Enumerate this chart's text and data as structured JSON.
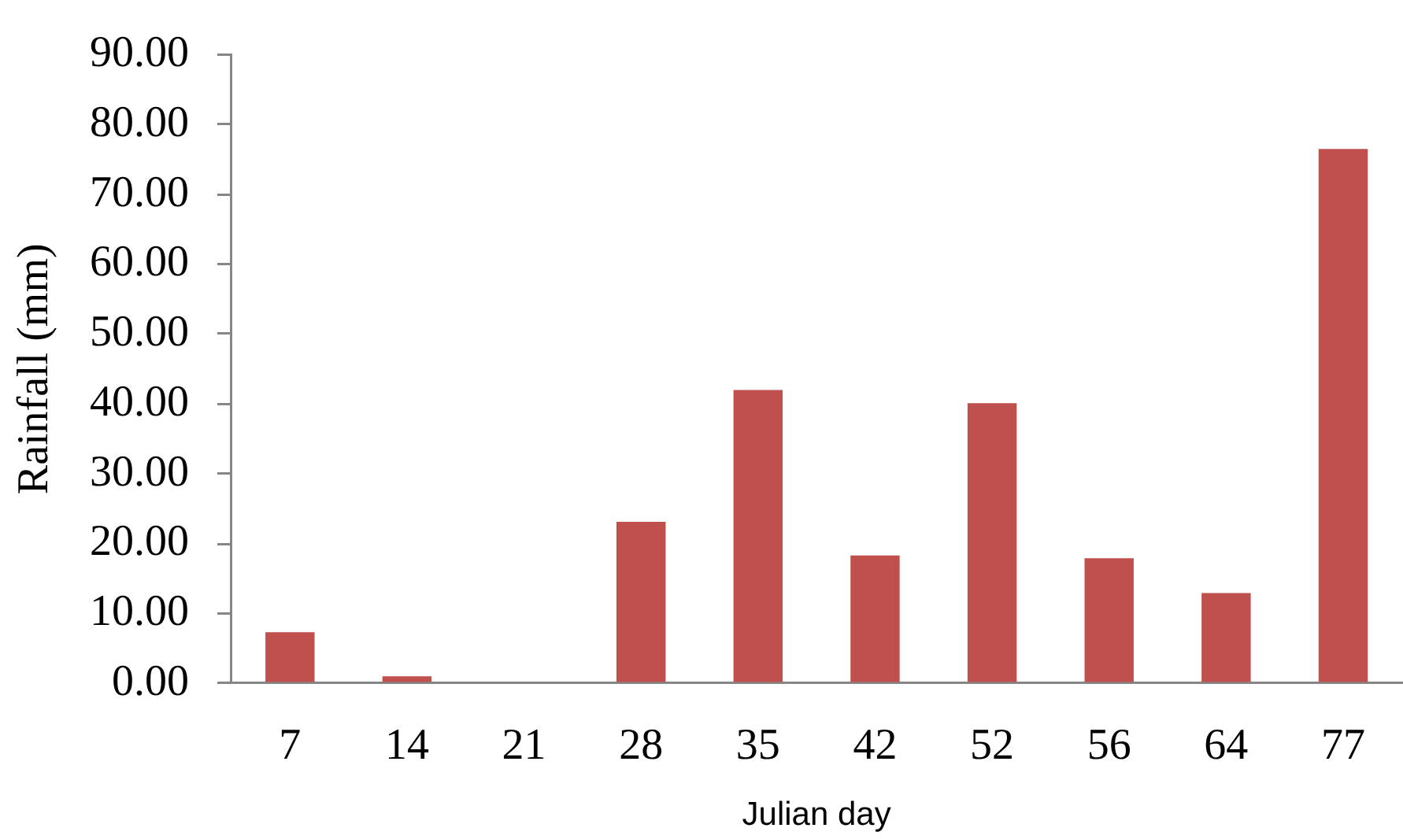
{
  "chart_data": {
    "type": "bar",
    "xlabel": "Julian day",
    "ylabel": "Rainfall (mm)",
    "categories": [
      "7",
      "14",
      "21",
      "28",
      "35",
      "42",
      "52",
      "56",
      "64",
      "77"
    ],
    "values": [
      7.3,
      1.0,
      0,
      23.1,
      42.0,
      18.3,
      40.1,
      17.9,
      12.9,
      76.5
    ],
    "color": "#c0504d",
    "ylim": [
      0,
      90
    ],
    "yticks": [
      {
        "value": 0,
        "label": "0.00"
      },
      {
        "value": 10,
        "label": "10.00"
      },
      {
        "value": 20,
        "label": "20.00"
      },
      {
        "value": 30,
        "label": "30.00"
      },
      {
        "value": 40,
        "label": "40.00"
      },
      {
        "value": 50,
        "label": "50.00"
      },
      {
        "value": 60,
        "label": "60.00"
      },
      {
        "value": 70,
        "label": "70.00"
      },
      {
        "value": 80,
        "label": "80.00"
      },
      {
        "value": 90,
        "label": "90.00"
      }
    ]
  }
}
